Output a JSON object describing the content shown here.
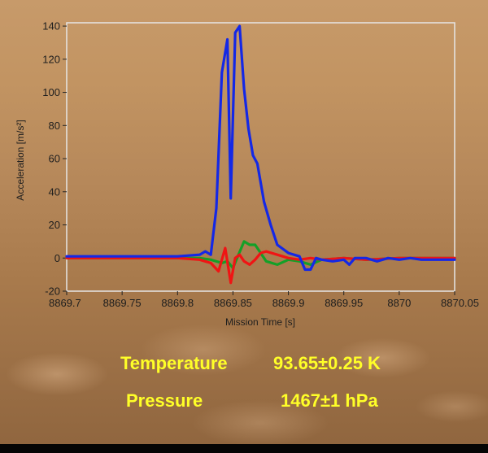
{
  "chart_data": {
    "type": "line",
    "xlabel": "Mission Time [s]",
    "ylabel": "Acceleration [m/s²]",
    "xlim": [
      8869.7,
      8870.05
    ],
    "ylim": [
      -20,
      142
    ],
    "x_ticks": [
      "8869.7",
      "8869.75",
      "8869.8",
      "8869.85",
      "8869.9",
      "8869.95",
      "8870",
      "8870.05"
    ],
    "x_tick_values": [
      8869.7,
      8869.75,
      8869.8,
      8869.85,
      8869.9,
      8869.95,
      8870.0,
      8870.05
    ],
    "y_ticks": [
      "-20",
      "0",
      "20",
      "40",
      "60",
      "80",
      "100",
      "120",
      "140"
    ],
    "y_tick_values": [
      -20,
      0,
      20,
      40,
      60,
      80,
      100,
      120,
      140
    ],
    "series": [
      {
        "color": "#1428e6",
        "x": [
          8869.7,
          8869.75,
          8869.8,
          8869.82,
          8869.825,
          8869.83,
          8869.835,
          8869.84,
          8869.845,
          8869.848,
          8869.852,
          8869.856,
          8869.86,
          8869.864,
          8869.868,
          8869.872,
          8869.878,
          8869.884,
          8869.89,
          8869.9,
          8869.91,
          8869.915,
          8869.92,
          8869.925,
          8869.93,
          8869.94,
          8869.95,
          8869.955,
          8869.96,
          8869.97,
          8869.98,
          8869.99,
          8870.0,
          8870.01,
          8870.02,
          8870.03,
          8870.05
        ],
        "y": [
          1,
          1,
          1,
          2,
          4,
          2,
          30,
          112,
          132,
          36,
          136,
          140,
          102,
          78,
          62,
          57,
          34,
          20,
          8,
          3,
          1,
          -7,
          -7,
          0,
          -1,
          -2,
          -1,
          -4,
          0,
          0,
          -2,
          0,
          -1,
          0,
          -1,
          -1,
          -1
        ]
      },
      {
        "color": "#14a028",
        "x": [
          8869.7,
          8869.8,
          8869.82,
          8869.83,
          8869.84,
          8869.845,
          8869.85,
          8869.855,
          8869.86,
          8869.865,
          8869.87,
          8869.875,
          8869.88,
          8869.89,
          8869.9,
          8869.91,
          8869.92,
          8869.93,
          8869.95,
          8869.97,
          8870.0,
          8870.05
        ],
        "y": [
          0,
          0,
          0,
          -1,
          -3,
          -2,
          -6,
          2,
          10,
          8,
          8,
          3,
          -2,
          -4,
          -1,
          -2,
          -4,
          -1,
          0,
          -1,
          0,
          0
        ]
      },
      {
        "color": "#f01414",
        "x": [
          8869.7,
          8869.8,
          8869.82,
          8869.83,
          8869.837,
          8869.843,
          8869.848,
          8869.852,
          8869.856,
          8869.86,
          8869.865,
          8869.87,
          8869.875,
          8869.88,
          8869.89,
          8869.9,
          8869.91,
          8869.92,
          8869.93,
          8869.95,
          8869.97,
          8870.0,
          8870.05
        ],
        "y": [
          0,
          0,
          -1,
          -3,
          -8,
          6,
          -15,
          0,
          2,
          -2,
          -4,
          -1,
          3,
          4,
          2,
          0,
          -1,
          0,
          -1,
          0,
          -1,
          0,
          0
        ]
      }
    ]
  },
  "readouts": {
    "temperature_label": "Temperature",
    "temperature_value": "93.65±0.25 K",
    "pressure_label": "Pressure",
    "pressure_value": "1467±1 hPa"
  },
  "colors": {
    "readout_text": "#ffff28",
    "frame": "#e6e6e6"
  }
}
